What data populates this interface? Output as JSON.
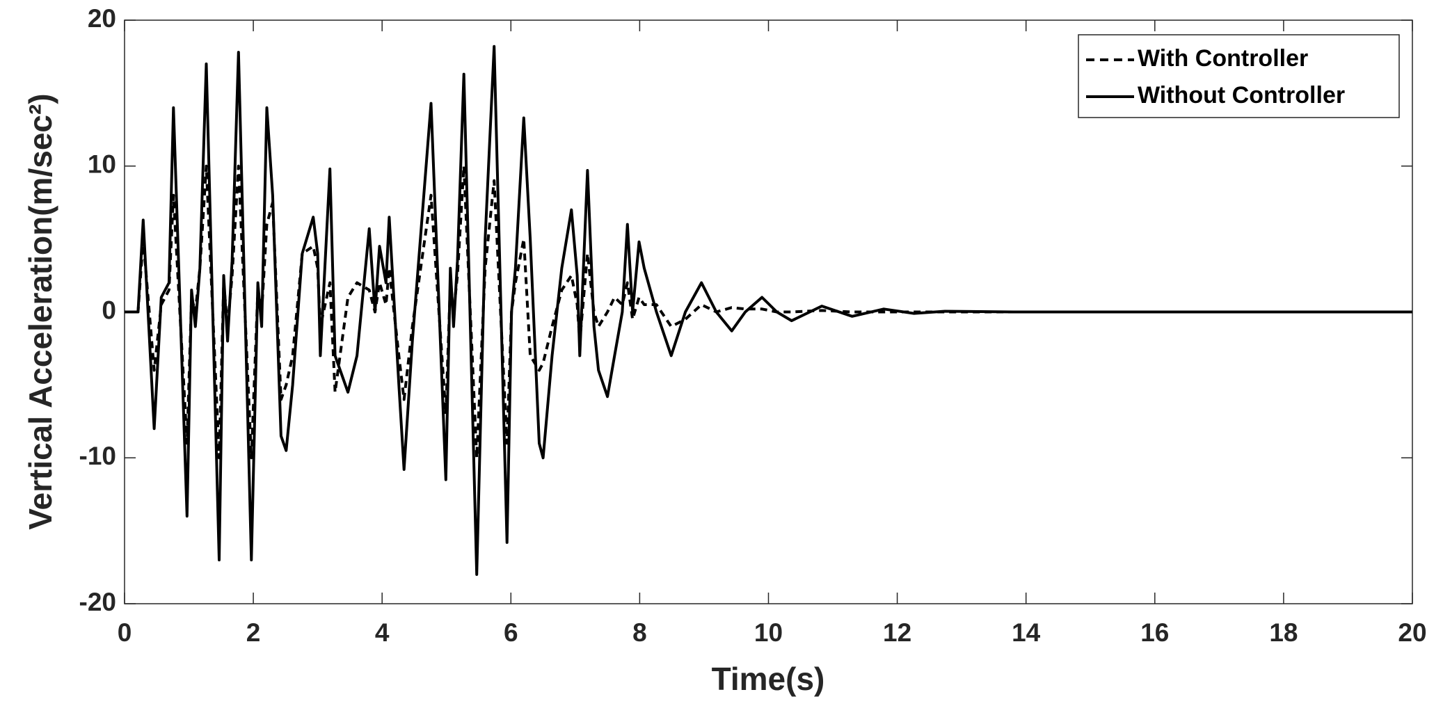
{
  "chart_data": {
    "type": "line",
    "xlabel": "Time(s)",
    "ylabel": "Vertical Acceleration(m/sec²)",
    "x": [
      0,
      0.21,
      0.29,
      0.46,
      0.57,
      0.69,
      0.76,
      0.97,
      1.04,
      1.1,
      1.17,
      1.27,
      1.47,
      1.54,
      1.6,
      1.67,
      1.77,
      1.97,
      2.07,
      2.13,
      2.21,
      2.3,
      2.43,
      2.51,
      2.61,
      2.76,
      2.93,
      3.0,
      3.04,
      3.19,
      3.27,
      3.47,
      3.61,
      3.8,
      3.89,
      3.96,
      4.06,
      4.11,
      4.26,
      4.34,
      4.47,
      4.76,
      4.99,
      5.06,
      5.11,
      5.17,
      5.27,
      5.47,
      5.6,
      5.74,
      5.94,
      6.01,
      6.07,
      6.2,
      6.3,
      6.44,
      6.5,
      6.64,
      6.79,
      6.94,
      7.03,
      7.07,
      7.19,
      7.29,
      7.36,
      7.5,
      7.61,
      7.73,
      7.81,
      7.89,
      7.99,
      8.07,
      8.26,
      8.49,
      8.71,
      8.96,
      9.19,
      9.43,
      9.64,
      9.9,
      10.13,
      10.36,
      10.83,
      11.3,
      11.79,
      12.26,
      12.74,
      13.8,
      20
    ],
    "series": [
      {
        "name": "With Controller",
        "color": "#000000",
        "dash": true,
        "values": [
          0,
          0,
          5,
          -4,
          0.5,
          1.5,
          8,
          -9,
          1,
          0,
          3,
          10,
          -10,
          2,
          -1,
          2.5,
          10,
          -10,
          1.5,
          0,
          6,
          7.5,
          -6,
          -5,
          -3,
          4,
          4.5,
          3,
          -1,
          2,
          -5.5,
          1,
          2,
          1.5,
          0,
          2,
          0.5,
          3,
          -3,
          -6,
          -1,
          8,
          -7,
          2,
          0,
          2.5,
          10,
          -10,
          3,
          9,
          -9,
          0,
          2,
          5,
          -3,
          -4,
          -3.5,
          -1,
          1.5,
          2.5,
          0.5,
          -2,
          4,
          0,
          -1,
          0,
          1,
          0.5,
          2,
          -0.5,
          1,
          0.5,
          0.5,
          -1,
          -0.5,
          0.5,
          0,
          0.3,
          0.2,
          0.2,
          0,
          0,
          0.1,
          0,
          0,
          0,
          0,
          0,
          0
        ]
      },
      {
        "name": "Without Controller",
        "color": "#000000",
        "dash": false,
        "values": [
          0,
          0,
          6.3,
          -8,
          1,
          2,
          14,
          -14,
          1.5,
          -1,
          3,
          17,
          -17,
          2.5,
          -2,
          3.5,
          17.8,
          -17,
          2,
          -1,
          14,
          8,
          -8.5,
          -9.5,
          -5,
          4,
          6.5,
          4,
          -3,
          9.8,
          -3,
          -5.5,
          -3,
          5.7,
          0,
          4.5,
          2,
          6.5,
          -5,
          -10.8,
          -2,
          14.3,
          -11.5,
          3,
          -1,
          3.5,
          16.3,
          -18,
          5,
          18.2,
          -15.8,
          0,
          3,
          13.3,
          5,
          -9,
          -10,
          -3,
          3,
          7,
          2.5,
          -3,
          9.7,
          -1,
          -4,
          -5.8,
          -3,
          0,
          6,
          0,
          4.8,
          3,
          0,
          -3,
          0,
          2,
          0,
          -1.3,
          0,
          1,
          0,
          -0.6,
          0.4,
          -0.3,
          0.2,
          -0.1,
          0.05,
          0,
          0
        ]
      }
    ],
    "xlim": [
      0,
      20
    ],
    "xticks": [
      0,
      2,
      4,
      6,
      8,
      10,
      12,
      14,
      16,
      18,
      20
    ],
    "ylim": [
      -20,
      20
    ],
    "yticks": [
      -20,
      -10,
      0,
      10,
      20
    ],
    "grid": false,
    "legend": "upper right"
  }
}
